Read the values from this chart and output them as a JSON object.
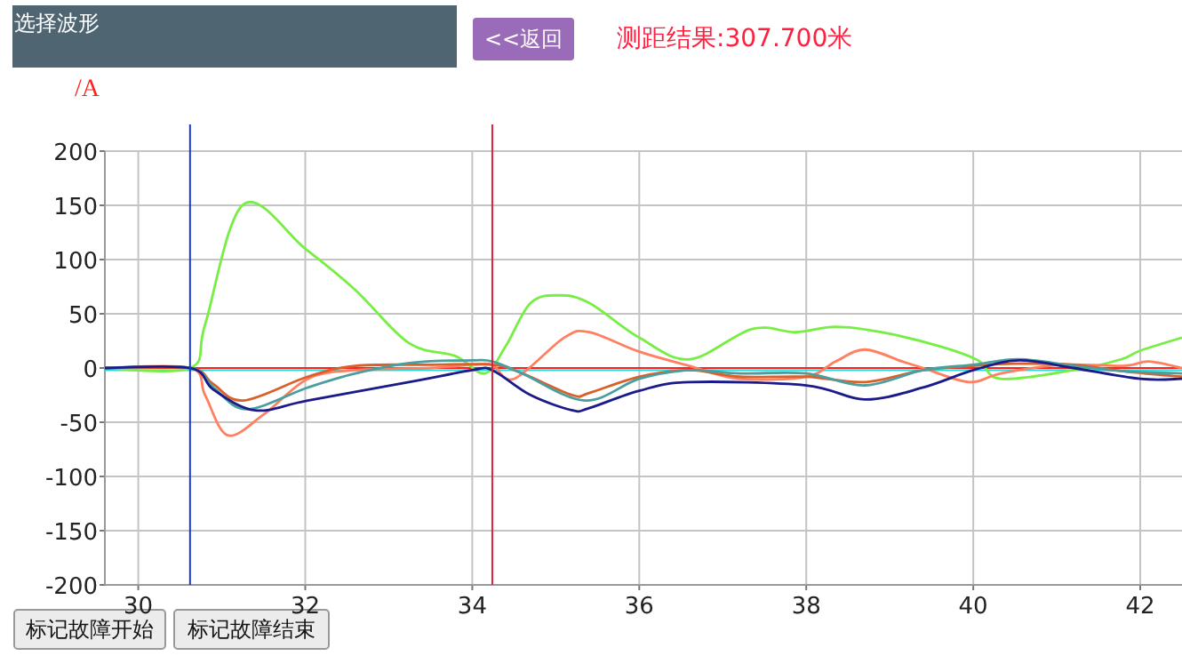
{
  "chart_data": {
    "type": "line",
    "ylabel": "/A",
    "annotations": [
      "选择波形",
      "<<返回",
      "测距结果:307.700米",
      "标记故障开始",
      "标记故障结束"
    ],
    "xlim": [
      29.6,
      42.5
    ],
    "ylim": [
      -200,
      200
    ],
    "xticks": [
      30,
      32,
      34,
      36,
      38,
      40,
      42
    ],
    "yticks": [
      -200,
      -150,
      -100,
      -50,
      0,
      50,
      100,
      150,
      200
    ],
    "grid": true,
    "marker": "none",
    "line_style": "solid",
    "ref_lines": [
      {
        "axis": "y",
        "value": 0,
        "color": "#ff2020"
      },
      {
        "axis": "y",
        "value": -2,
        "color": "#22dddd"
      },
      {
        "axis": "x",
        "value": 30.62,
        "color": "#1a3acc"
      },
      {
        "axis": "x",
        "value": 34.24,
        "color": "#e0203a"
      }
    ],
    "series": [
      {
        "color": "#77ee44",
        "x": [
          29.6,
          30.62,
          30.8,
          31.26,
          32.0,
          32.6,
          33.24,
          33.8,
          34.15,
          34.4,
          34.7,
          35.05,
          35.4,
          36.0,
          36.6,
          37.35,
          37.87,
          38.35,
          38.9,
          39.6,
          40.06,
          40.33,
          41.2,
          41.77,
          42.0,
          42.5
        ],
        "values": [
          0,
          0,
          40,
          151,
          110,
          72,
          23,
          11,
          -5,
          20,
          60,
          67,
          60,
          28,
          8,
          36,
          33,
          38,
          33,
          20,
          7,
          -10,
          -2,
          8,
          16,
          28
        ]
      },
      {
        "color": "#ff7f60",
        "x": [
          29.6,
          30.62,
          30.8,
          31.07,
          31.5,
          32.03,
          32.6,
          33.5,
          34.0,
          34.24,
          34.5,
          35.1,
          35.4,
          36.0,
          36.6,
          37.2,
          38.0,
          38.35,
          38.7,
          39.15,
          39.4,
          39.95,
          40.33,
          41.05,
          41.8,
          42.1,
          42.5
        ],
        "values": [
          0,
          0,
          -25,
          -62,
          -43,
          -10,
          -2,
          0,
          3,
          3,
          -10,
          28,
          33,
          15,
          2,
          -10,
          -8,
          6,
          17,
          6,
          0,
          -13,
          -5,
          3,
          2,
          6,
          0
        ]
      },
      {
        "color": "#d9602a",
        "x": [
          29.6,
          30.62,
          30.9,
          31.26,
          32.03,
          32.6,
          33.5,
          34.24,
          34.6,
          35.2,
          35.4,
          36.0,
          36.6,
          37.2,
          38.0,
          38.7,
          39.4,
          40.0,
          40.5,
          41.2,
          41.8,
          42.5
        ],
        "values": [
          0,
          0,
          -15,
          -30,
          -8,
          2,
          3,
          3,
          -5,
          -25,
          -23,
          -8,
          -2,
          -8,
          -8,
          -13,
          -2,
          2,
          4,
          3,
          -3,
          -8
        ]
      },
      {
        "color": "#4a9e9e",
        "x": [
          29.6,
          30.62,
          30.9,
          31.3,
          32.03,
          32.6,
          33.3,
          34.0,
          34.24,
          34.6,
          35.35,
          36.0,
          36.6,
          37.2,
          38.0,
          38.7,
          39.4,
          40.0,
          40.55,
          41.2,
          41.8,
          42.5
        ],
        "values": [
          0,
          0,
          -18,
          -38,
          -18,
          -5,
          5,
          7,
          6,
          -5,
          -30,
          -10,
          -2,
          -5,
          -5,
          -16,
          -2,
          3,
          8,
          2,
          -3,
          -5
        ]
      },
      {
        "color": "#1a1a8a",
        "x": [
          29.6,
          30.62,
          30.9,
          31.4,
          32.03,
          33.24,
          34.0,
          34.24,
          34.7,
          35.2,
          35.4,
          36.0,
          36.6,
          38.0,
          38.7,
          39.4,
          40.0,
          40.55,
          41.2,
          42.0,
          42.5
        ],
        "values": [
          0,
          0,
          -20,
          -39,
          -30,
          -13,
          -2,
          -2,
          -25,
          -39,
          -37,
          -21,
          -13,
          -16,
          -29,
          -18,
          -2,
          7,
          0,
          -10,
          -10
        ]
      }
    ]
  }
}
